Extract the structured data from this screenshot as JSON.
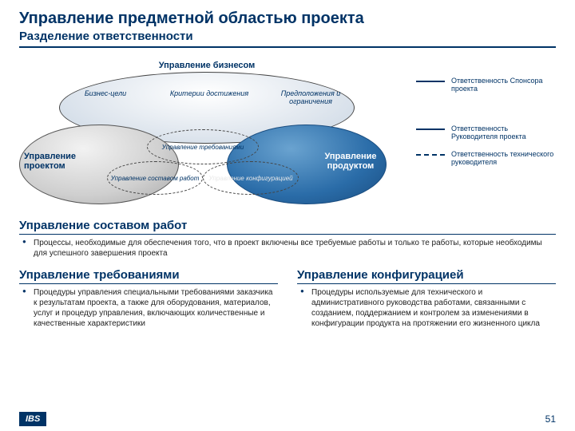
{
  "title": "Управление предметной областью проекта",
  "subtitle": "Разделение ответственности",
  "diagram": {
    "top": {
      "label": "Управление бизнесом",
      "sub": [
        "Бизнес-цели",
        "Критерии достижения",
        "Предположения и ограничения"
      ]
    },
    "left_label": "Управление проектом",
    "right_label": "Управление продуктом",
    "dashed": [
      "Управление требованиями",
      "Управление составом работ",
      "Управление конфигурацией"
    ],
    "colors": {
      "top_fill": "#dfe6ee",
      "left_fill": "#cfcfcf",
      "right_fill": "#2a6ca8",
      "border": "#003366"
    }
  },
  "legend": [
    {
      "style": "solid",
      "text": "Ответственность Спонсора проекта"
    },
    {
      "style": "solid",
      "text": "Ответственность Руководителя проекта"
    },
    {
      "style": "dashed",
      "text": "Ответственность технического руководителя"
    }
  ],
  "sections": {
    "scope": {
      "title": "Управление составом работ",
      "text": "Процессы, необходимые для обеспечения того, что в проект включены все требуемые работы и только те работы, которые необходимы для успешного завершения проекта"
    },
    "reqs": {
      "title": "Управление требованиями",
      "text": "Процедуры управления специальными требованиями заказчика к результатам проекта, а также для оборудования, материалов, услуг и процедур управления, включающих количественные и качественные характеристики"
    },
    "config": {
      "title": "Управление конфигурацией",
      "text": "Процедуры используемые для технического и административного руководства работами, связанными с созданием, поддержанием и контролем за изменениями в конфигурации продукта на протяжении его жизненного цикла"
    }
  },
  "footer": {
    "logo": "IBS",
    "page": "51"
  }
}
